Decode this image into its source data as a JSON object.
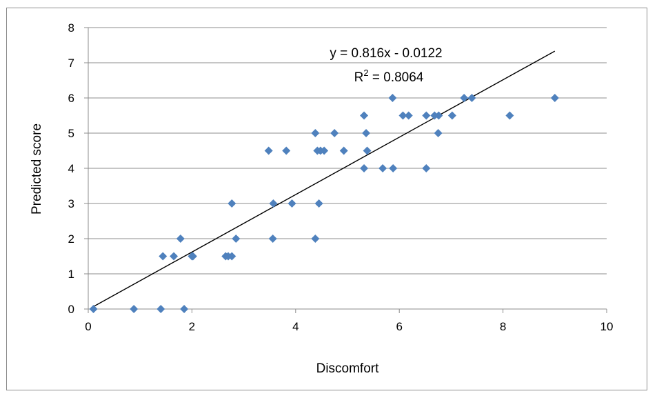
{
  "chart_data": {
    "type": "scatter",
    "title": "",
    "xlabel": "Discomfort",
    "ylabel": "Predicted score",
    "xlim": [
      0,
      10
    ],
    "ylim": [
      0,
      8
    ],
    "x_ticks": [
      "0",
      "2",
      "4",
      "6",
      "8",
      "10"
    ],
    "y_ticks": [
      "0",
      "1",
      "2",
      "3",
      "4",
      "5",
      "6",
      "7",
      "8"
    ],
    "grid": "horizontal",
    "marker": "diamond",
    "marker_color": "#4f81bd",
    "trendline": {
      "slope": 0.816,
      "intercept": -0.0122,
      "x_range": [
        0.1,
        9.0
      ],
      "color": "#000000",
      "equation_label": "y = 0.816x - 0.0122",
      "r2_prefix": "R",
      "r2_sup": "2",
      "r2_suffix": " = 0.8064"
    },
    "points": [
      {
        "x": 0.1,
        "y": 0
      },
      {
        "x": 0.88,
        "y": 0
      },
      {
        "x": 1.4,
        "y": 0
      },
      {
        "x": 1.85,
        "y": 0
      },
      {
        "x": 1.44,
        "y": 1.5
      },
      {
        "x": 1.65,
        "y": 1.5
      },
      {
        "x": 2.0,
        "y": 1.5
      },
      {
        "x": 2.02,
        "y": 1.5
      },
      {
        "x": 2.65,
        "y": 1.5
      },
      {
        "x": 2.7,
        "y": 1.5
      },
      {
        "x": 2.77,
        "y": 1.5
      },
      {
        "x": 1.78,
        "y": 2
      },
      {
        "x": 2.85,
        "y": 2
      },
      {
        "x": 3.56,
        "y": 2
      },
      {
        "x": 4.38,
        "y": 2
      },
      {
        "x": 2.77,
        "y": 3
      },
      {
        "x": 3.57,
        "y": 3
      },
      {
        "x": 3.93,
        "y": 3
      },
      {
        "x": 4.45,
        "y": 3
      },
      {
        "x": 3.48,
        "y": 4.5
      },
      {
        "x": 3.82,
        "y": 4.5
      },
      {
        "x": 4.42,
        "y": 4.5
      },
      {
        "x": 4.48,
        "y": 4.5
      },
      {
        "x": 4.55,
        "y": 4.5
      },
      {
        "x": 4.93,
        "y": 4.5
      },
      {
        "x": 5.38,
        "y": 4.5
      },
      {
        "x": 4.38,
        "y": 5
      },
      {
        "x": 4.75,
        "y": 5
      },
      {
        "x": 5.36,
        "y": 5
      },
      {
        "x": 6.75,
        "y": 5
      },
      {
        "x": 5.32,
        "y": 4
      },
      {
        "x": 5.68,
        "y": 4
      },
      {
        "x": 5.88,
        "y": 4
      },
      {
        "x": 6.52,
        "y": 4
      },
      {
        "x": 5.32,
        "y": 5.5
      },
      {
        "x": 6.07,
        "y": 5.5
      },
      {
        "x": 6.18,
        "y": 5.5
      },
      {
        "x": 6.52,
        "y": 5.5
      },
      {
        "x": 6.68,
        "y": 5.5
      },
      {
        "x": 6.76,
        "y": 5.5
      },
      {
        "x": 7.02,
        "y": 5.5
      },
      {
        "x": 8.13,
        "y": 5.5
      },
      {
        "x": 5.87,
        "y": 6
      },
      {
        "x": 7.25,
        "y": 6
      },
      {
        "x": 7.4,
        "y": 6
      },
      {
        "x": 9.0,
        "y": 6
      }
    ]
  }
}
